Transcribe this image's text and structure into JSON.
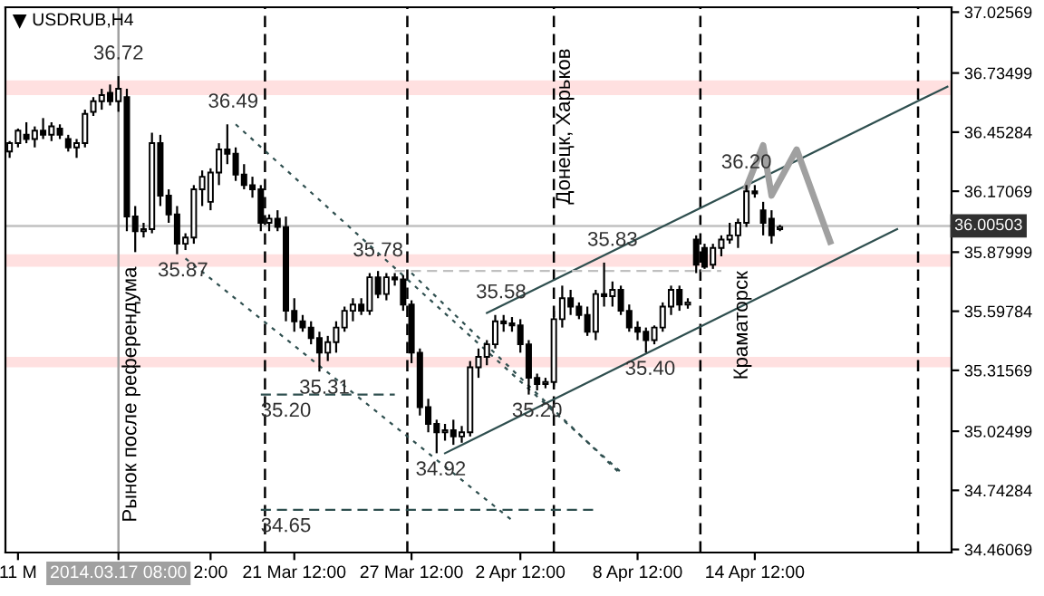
{
  "chart_data": {
    "type": "candlestick",
    "title": "USDRUB,H4",
    "categories": [
      null,
      "11 M",
      null,
      null,
      null,
      null,
      null,
      null,
      null,
      null,
      null,
      null,
      null,
      "2014.03.17 08:00",
      null,
      null,
      null,
      null,
      null,
      null,
      null,
      null,
      null,
      null,
      "2:00",
      null,
      null,
      null,
      null,
      null,
      null,
      null,
      null,
      null,
      "21 Mar 12:00",
      null,
      null,
      null,
      null,
      null,
      null,
      null,
      null,
      null,
      null,
      null,
      null,
      null,
      "27 Mar 12:00",
      null,
      null,
      null,
      null,
      null,
      null,
      null,
      null,
      null,
      null,
      null,
      null,
      "2 Apr 12:00",
      null,
      null,
      null,
      null,
      null,
      null,
      null,
      null,
      null,
      null,
      null,
      null,
      null,
      "8 Apr 12:00",
      null,
      null,
      null,
      null,
      null,
      null,
      null,
      null,
      null,
      null,
      null,
      null,
      null,
      "14 Apr 12:00",
      null,
      null,
      null,
      null,
      null,
      null,
      null,
      null,
      null,
      null,
      null,
      null,
      null,
      null,
      null,
      null,
      null,
      null,
      null,
      null,
      null,
      null,
      null
    ],
    "ohlc": [
      [
        36.36,
        36.41,
        36.33,
        36.4
      ],
      [
        36.4,
        36.47,
        36.38,
        36.46
      ],
      [
        36.44,
        36.5,
        36.4,
        36.42
      ],
      [
        36.42,
        36.48,
        36.38,
        36.46
      ],
      [
        36.46,
        36.52,
        36.42,
        36.44
      ],
      [
        36.44,
        36.5,
        36.41,
        36.48
      ],
      [
        36.47,
        36.49,
        36.42,
        36.44
      ],
      [
        36.42,
        36.44,
        36.36,
        36.38
      ],
      [
        36.38,
        36.42,
        36.33,
        36.4
      ],
      [
        36.4,
        36.56,
        36.38,
        36.54
      ],
      [
        36.55,
        36.62,
        36.53,
        36.6
      ],
      [
        36.6,
        36.66,
        36.56,
        36.63
      ],
      [
        36.64,
        36.68,
        36.58,
        36.6
      ],
      [
        36.6,
        36.72,
        36.55,
        36.66
      ],
      [
        36.62,
        36.66,
        35.98,
        36.05
      ],
      [
        36.05,
        36.1,
        35.88,
        35.98
      ],
      [
        35.98,
        36.02,
        35.95,
        35.99
      ],
      [
        35.99,
        36.45,
        35.97,
        36.4
      ],
      [
        36.4,
        36.44,
        36.1,
        36.15
      ],
      [
        36.15,
        36.18,
        36.02,
        36.06
      ],
      [
        36.06,
        36.1,
        35.87,
        35.92
      ],
      [
        35.92,
        35.97,
        35.89,
        35.95
      ],
      [
        35.95,
        36.2,
        35.92,
        36.18
      ],
      [
        36.18,
        36.27,
        36.1,
        36.24
      ],
      [
        36.12,
        36.28,
        36.08,
        36.26
      ],
      [
        36.26,
        36.4,
        36.2,
        36.37
      ],
      [
        36.37,
        36.49,
        36.3,
        36.35
      ],
      [
        36.35,
        36.38,
        36.22,
        36.25
      ],
      [
        36.25,
        36.3,
        36.18,
        36.2
      ],
      [
        36.2,
        36.24,
        36.14,
        36.18
      ],
      [
        36.18,
        36.2,
        35.98,
        36.02
      ],
      [
        36.02,
        36.06,
        35.98,
        36.04
      ],
      [
        36.04,
        36.08,
        35.98,
        36.0
      ],
      [
        36.0,
        36.05,
        35.55,
        35.6
      ],
      [
        35.6,
        35.66,
        35.5,
        35.55
      ],
      [
        35.55,
        35.58,
        35.5,
        35.52
      ],
      [
        35.52,
        35.55,
        35.44,
        35.47
      ],
      [
        35.47,
        35.5,
        35.31,
        35.4
      ],
      [
        35.4,
        35.48,
        35.36,
        35.45
      ],
      [
        35.45,
        35.55,
        35.4,
        35.52
      ],
      [
        35.52,
        35.62,
        35.5,
        35.6
      ],
      [
        35.6,
        35.66,
        35.55,
        35.63
      ],
      [
        35.63,
        35.66,
        35.58,
        35.6
      ],
      [
        35.6,
        35.78,
        35.58,
        35.76
      ],
      [
        35.76,
        35.79,
        35.66,
        35.68
      ],
      [
        35.68,
        35.78,
        35.65,
        35.76
      ],
      [
        35.76,
        35.78,
        35.72,
        35.75
      ],
      [
        35.75,
        35.77,
        35.6,
        35.63
      ],
      [
        35.63,
        35.65,
        35.35,
        35.4
      ],
      [
        35.4,
        35.42,
        35.1,
        35.14
      ],
      [
        35.14,
        35.18,
        35.02,
        35.06
      ],
      [
        35.06,
        35.08,
        34.92,
        35.02
      ],
      [
        35.02,
        35.06,
        34.98,
        35.03
      ],
      [
        35.03,
        35.08,
        34.96,
        35.0
      ],
      [
        35.0,
        35.05,
        34.97,
        35.02
      ],
      [
        35.02,
        35.36,
        35.0,
        35.33
      ],
      [
        35.33,
        35.42,
        35.28,
        35.38
      ],
      [
        35.38,
        35.46,
        35.34,
        35.44
      ],
      [
        35.44,
        35.58,
        35.42,
        35.55
      ],
      [
        35.55,
        35.58,
        35.5,
        35.54
      ],
      [
        35.54,
        35.57,
        35.5,
        35.53
      ],
      [
        35.53,
        35.56,
        35.4,
        35.44
      ],
      [
        35.44,
        35.46,
        35.2,
        35.28
      ],
      [
        35.28,
        35.3,
        35.22,
        35.25
      ],
      [
        35.25,
        35.28,
        35.23,
        35.26
      ],
      [
        35.26,
        35.6,
        35.24,
        35.56
      ],
      [
        35.56,
        35.72,
        35.52,
        35.66
      ],
      [
        35.66,
        35.7,
        35.58,
        35.62
      ],
      [
        35.62,
        35.64,
        35.56,
        35.58
      ],
      [
        35.58,
        35.62,
        35.48,
        35.5
      ],
      [
        35.5,
        35.7,
        35.46,
        35.68
      ],
      [
        35.68,
        35.83,
        35.62,
        35.67
      ],
      [
        35.67,
        35.74,
        35.62,
        35.7
      ],
      [
        35.7,
        35.72,
        35.58,
        35.6
      ],
      [
        35.6,
        35.63,
        35.5,
        35.52
      ],
      [
        35.52,
        35.55,
        35.46,
        35.5
      ],
      [
        35.5,
        35.52,
        35.4,
        35.46
      ],
      [
        35.46,
        35.53,
        35.44,
        35.52
      ],
      [
        35.52,
        35.64,
        35.5,
        35.62
      ],
      [
        35.62,
        35.72,
        35.58,
        35.7
      ],
      [
        35.7,
        35.72,
        35.6,
        35.63
      ],
      [
        35.63,
        35.66,
        35.61,
        35.64
      ],
      [
        35.94,
        35.96,
        35.78,
        35.82
      ],
      [
        35.9,
        35.92,
        35.8,
        35.81
      ],
      [
        35.82,
        35.92,
        35.8,
        35.9
      ],
      [
        35.9,
        35.96,
        35.86,
        35.94
      ],
      [
        35.94,
        36.02,
        35.92,
        35.96
      ],
      [
        35.96,
        36.04,
        35.9,
        36.02
      ],
      [
        36.02,
        36.2,
        36.0,
        36.17
      ],
      [
        36.17,
        36.2,
        36.14,
        36.16
      ],
      [
        36.08,
        36.12,
        35.96,
        36.02
      ],
      [
        36.04,
        36.08,
        35.92,
        35.96
      ],
      [
        35.99,
        36.01,
        35.98,
        36.0
      ],
      null,
      null,
      null,
      null,
      null,
      null,
      null,
      null,
      null,
      null,
      null,
      null,
      null,
      null,
      null,
      null,
      null,
      null,
      null,
      null
    ],
    "series": [
      {
        "type": "line",
        "color": "#2f4f4f",
        "line_style": "dotted",
        "values": [
          null,
          null,
          null,
          null,
          null,
          null,
          null,
          null,
          null,
          null,
          null,
          null,
          null,
          null,
          null,
          null,
          null,
          null,
          null,
          null,
          null,
          null,
          null,
          null,
          null,
          null,
          null,
          36.49,
          null,
          null,
          null,
          null,
          null,
          null,
          null,
          null,
          null,
          null,
          null,
          null,
          null,
          null,
          null,
          null,
          null,
          null,
          null,
          null,
          null,
          null,
          null,
          null,
          null,
          null,
          null,
          null,
          null,
          null,
          null,
          null,
          null,
          null,
          null,
          null,
          null,
          null,
          null,
          null,
          null,
          null,
          null,
          null,
          null,
          34.83,
          null,
          null,
          null,
          null,
          null,
          null,
          null,
          null,
          null,
          null,
          null,
          null,
          null,
          null,
          null,
          null,
          null,
          null,
          null,
          null,
          null,
          null,
          null,
          null,
          null,
          null,
          null,
          null,
          null,
          null,
          null,
          null,
          null,
          null,
          null,
          null,
          null,
          null,
          null
        ]
      },
      {
        "type": "line",
        "color": "#2f4f4f",
        "line_style": "dotted",
        "values": [
          null,
          null,
          null,
          null,
          null,
          null,
          null,
          null,
          null,
          null,
          null,
          null,
          null,
          null,
          null,
          null,
          null,
          null,
          null,
          null,
          null,
          35.85,
          null,
          null,
          null,
          null,
          null,
          null,
          null,
          null,
          null,
          null,
          null,
          null,
          null,
          null,
          null,
          null,
          null,
          null,
          null,
          null,
          null,
          null,
          null,
          null,
          null,
          null,
          null,
          null,
          null,
          null,
          null,
          null,
          null,
          null,
          null,
          null,
          null,
          null,
          34.6,
          null,
          null,
          null,
          null,
          null,
          null,
          null,
          null,
          null,
          null,
          null,
          null,
          null,
          null,
          null,
          null,
          null,
          null,
          null,
          null,
          null,
          null,
          null,
          null,
          null,
          null,
          null,
          null,
          null,
          null,
          null,
          null,
          null,
          null,
          null,
          null,
          null,
          null,
          null,
          null,
          null,
          null,
          null,
          null,
          null,
          null,
          null,
          null,
          null,
          null,
          null,
          null
        ]
      },
      {
        "type": "line",
        "color": "#2f4f4f",
        "line_style": "dotted",
        "values": [
          null,
          null,
          null,
          null,
          null,
          null,
          null,
          null,
          null,
          null,
          null,
          null,
          null,
          null,
          null,
          null,
          null,
          null,
          null,
          null,
          null,
          null,
          null,
          null,
          null,
          null,
          null,
          null,
          null,
          null,
          null,
          null,
          null,
          null,
          null,
          null,
          null,
          null,
          null,
          null,
          null,
          null,
          null,
          null,
          null,
          null,
          null,
          null,
          35.78,
          null,
          null,
          null,
          null,
          null,
          null,
          null,
          null,
          null,
          null,
          null,
          null,
          null,
          null,
          null,
          null,
          null,
          null,
          null,
          null,
          null,
          null,
          null,
          null,
          34.82,
          null,
          null,
          null,
          null,
          null,
          null,
          null,
          null,
          null,
          null,
          null,
          null,
          null,
          null,
          null,
          null,
          null,
          null,
          null,
          null,
          null,
          null,
          null,
          null,
          null,
          null,
          null,
          null,
          null,
          null,
          null,
          null,
          null,
          null,
          null,
          null,
          null,
          null,
          null
        ]
      },
      {
        "type": "line",
        "color": "#2f4f4f",
        "line_style": "solid",
        "values": [
          null,
          null,
          null,
          null,
          null,
          null,
          null,
          null,
          null,
          null,
          null,
          null,
          null,
          null,
          null,
          null,
          null,
          null,
          null,
          null,
          null,
          null,
          null,
          null,
          null,
          null,
          null,
          null,
          null,
          null,
          null,
          null,
          null,
          null,
          null,
          null,
          null,
          null,
          null,
          null,
          null,
          null,
          null,
          null,
          null,
          null,
          null,
          null,
          null,
          null,
          null,
          null,
          34.92,
          null,
          null,
          null,
          null,
          null,
          null,
          null,
          null,
          null,
          null,
          null,
          null,
          null,
          null,
          null,
          null,
          null,
          null,
          null,
          null,
          null,
          null,
          null,
          null,
          null,
          null,
          null,
          null,
          null,
          null,
          null,
          null,
          null,
          null,
          null,
          null,
          null,
          null,
          null,
          null,
          null,
          null,
          null,
          null,
          null,
          null,
          null,
          null,
          null,
          null,
          null,
          null,
          null,
          35.99,
          null,
          null,
          null,
          null,
          null,
          null
        ]
      },
      {
        "type": "line",
        "color": "#2f4f4f",
        "line_style": "solid",
        "values": [
          null,
          null,
          null,
          null,
          null,
          null,
          null,
          null,
          null,
          null,
          null,
          null,
          null,
          null,
          null,
          null,
          null,
          null,
          null,
          null,
          null,
          null,
          null,
          null,
          null,
          null,
          null,
          null,
          null,
          null,
          null,
          null,
          null,
          null,
          null,
          null,
          null,
          null,
          null,
          null,
          null,
          null,
          null,
          null,
          null,
          null,
          null,
          null,
          null,
          null,
          null,
          null,
          null,
          null,
          null,
          null,
          null,
          35.59,
          null,
          null,
          null,
          null,
          null,
          null,
          null,
          null,
          null,
          null,
          null,
          null,
          null,
          null,
          null,
          null,
          null,
          null,
          null,
          null,
          null,
          null,
          null,
          null,
          null,
          null,
          null,
          null,
          null,
          null,
          null,
          null,
          null,
          null,
          null,
          null,
          null,
          null,
          null,
          null,
          null,
          null,
          null,
          null,
          null,
          null,
          null,
          null,
          null,
          null,
          null,
          null,
          null,
          null,
          36.67
        ]
      },
      {
        "type": "line",
        "color": "#2f4f4f",
        "line_style": "dashed",
        "values": [
          null,
          null,
          null,
          null,
          null,
          null,
          null,
          null,
          null,
          null,
          null,
          null,
          null,
          null,
          null,
          null,
          null,
          null,
          null,
          null,
          null,
          null,
          null,
          null,
          null,
          null,
          null,
          null,
          null,
          null,
          35.2,
          null,
          null,
          null,
          null,
          null,
          null,
          null,
          null,
          null,
          null,
          null,
          null,
          null,
          null,
          null,
          35.2,
          null,
          null,
          null,
          null,
          null,
          null,
          null,
          null,
          null,
          null,
          null,
          null,
          null,
          null,
          null,
          null,
          null,
          null,
          null,
          null,
          null,
          null,
          null,
          null,
          null,
          null,
          null,
          null,
          null,
          null,
          null,
          null,
          null,
          null,
          null,
          null,
          null,
          null,
          null,
          null,
          null,
          null,
          null,
          null,
          null,
          null,
          null,
          null,
          null,
          null,
          null,
          null,
          null,
          null,
          null,
          null,
          null,
          null,
          null,
          null,
          null,
          null,
          null,
          null,
          null,
          null
        ]
      },
      {
        "type": "line",
        "color": "#2f4f4f",
        "line_style": "dashed",
        "values": [
          null,
          null,
          null,
          null,
          null,
          null,
          null,
          null,
          null,
          null,
          null,
          null,
          null,
          null,
          null,
          null,
          null,
          null,
          null,
          null,
          null,
          null,
          null,
          null,
          null,
          null,
          null,
          null,
          null,
          null,
          34.65,
          null,
          null,
          null,
          null,
          null,
          null,
          null,
          null,
          null,
          null,
          null,
          null,
          null,
          null,
          null,
          null,
          null,
          null,
          null,
          null,
          null,
          null,
          null,
          null,
          null,
          null,
          null,
          null,
          null,
          null,
          null,
          null,
          null,
          null,
          null,
          null,
          null,
          null,
          null,
          34.65,
          null,
          null,
          null,
          null,
          null,
          null,
          null,
          null,
          null,
          null,
          null,
          null,
          null,
          null,
          null,
          null,
          null,
          null,
          null,
          null,
          null,
          null,
          null,
          null,
          null,
          null,
          null,
          null,
          null,
          null,
          null,
          null,
          null,
          null,
          null,
          null,
          null,
          null,
          null,
          null,
          null,
          null
        ]
      },
      {
        "type": "line",
        "color": "#c0c0c0",
        "line_style": "dashed",
        "values": [
          null,
          null,
          null,
          null,
          null,
          null,
          null,
          null,
          null,
          null,
          null,
          null,
          null,
          null,
          null,
          null,
          null,
          null,
          null,
          null,
          null,
          null,
          null,
          null,
          null,
          null,
          null,
          null,
          null,
          null,
          null,
          null,
          null,
          null,
          null,
          null,
          null,
          null,
          null,
          null,
          null,
          null,
          null,
          null,
          null,
          null,
          35.79,
          null,
          null,
          null,
          null,
          null,
          null,
          null,
          null,
          null,
          null,
          null,
          null,
          null,
          null,
          null,
          null,
          null,
          null,
          null,
          null,
          null,
          null,
          null,
          null,
          null,
          null,
          null,
          null,
          null,
          null,
          null,
          null,
          null,
          null,
          null,
          null,
          null,
          null,
          35.79,
          null,
          null,
          null,
          null,
          null,
          null,
          null,
          null,
          null,
          null,
          null,
          null,
          null,
          null,
          null,
          null,
          null,
          null,
          null,
          null,
          null,
          null,
          null,
          null,
          null,
          null,
          null
        ]
      },
      {
        "type": "line",
        "color": "#a0a0a0",
        "line_style": "solid",
        "values": [
          null,
          null,
          null,
          null,
          null,
          null,
          null,
          null,
          null,
          null,
          null,
          null,
          null,
          null,
          null,
          null,
          null,
          null,
          null,
          null,
          null,
          null,
          null,
          null,
          null,
          null,
          null,
          null,
          null,
          null,
          null,
          null,
          null,
          null,
          null,
          null,
          null,
          null,
          null,
          null,
          null,
          null,
          null,
          null,
          null,
          null,
          null,
          null,
          null,
          null,
          null,
          null,
          null,
          null,
          null,
          null,
          null,
          null,
          null,
          null,
          null,
          null,
          null,
          null,
          null,
          null,
          null,
          null,
          null,
          null,
          null,
          null,
          null,
          null,
          null,
          null,
          null,
          null,
          null,
          null,
          null,
          null,
          null,
          null,
          null,
          null,
          null,
          null,
          36.19,
          null,
          36.39,
          36.15,
          null,
          null,
          36.37,
          null,
          null,
          null,
          35.93,
          null,
          null,
          null,
          null,
          null,
          null,
          null,
          null,
          null,
          null,
          null,
          null,
          null,
          null
        ]
      }
    ],
    "bands": [
      {
        "axis": "y",
        "from": 36.63,
        "to": 36.7,
        "color": "#ffe0e0"
      },
      {
        "axis": "y",
        "from": 35.81,
        "to": 35.87,
        "color": "#ffe0e0"
      },
      {
        "axis": "y",
        "from": 35.33,
        "to": 35.38,
        "color": "#ffe0e0"
      }
    ],
    "ref_lines": [
      {
        "axis": "y",
        "value": 36.00503,
        "label": "36.00503",
        "color": "#c0c0c0",
        "line_style": "solid"
      },
      {
        "axis": "x",
        "value": "2014.03.17 08:00",
        "color": "#a0a0a0",
        "line_style": "solid"
      }
    ],
    "annotations": [
      {
        "text": "36.72",
        "y": 36.72
      },
      {
        "text": "36.49",
        "y": 36.49
      },
      {
        "text": "35.87",
        "y": 35.87
      },
      {
        "text": "35.78",
        "y": 35.78
      },
      {
        "text": "35.31",
        "y": 35.31
      },
      {
        "text": "35.20",
        "y": 35.2
      },
      {
        "text": "34.65",
        "y": 34.65
      },
      {
        "text": "34.92",
        "y": 34.92
      },
      {
        "text": "35.58",
        "y": 35.58
      },
      {
        "text": "35.20",
        "y": 35.2
      },
      {
        "text": "35.83",
        "y": 35.83
      },
      {
        "text": "35.40",
        "y": 35.4
      },
      {
        "text": "36.20",
        "y": 36.2
      },
      "Рынок после референдума",
      "Донецк, Харьков",
      {
        "text": "Краматорск",
        "y": 35.79
      }
    ],
    "ylim": [
      34.446,
      37.049
    ],
    "yticks": [
      37.02569,
      36.73499,
      36.45284,
      36.17069,
      35.87999,
      35.59784,
      35.31569,
      35.02499,
      34.74284,
      34.46069
    ],
    "grid": "x",
    "legend": false
  }
}
